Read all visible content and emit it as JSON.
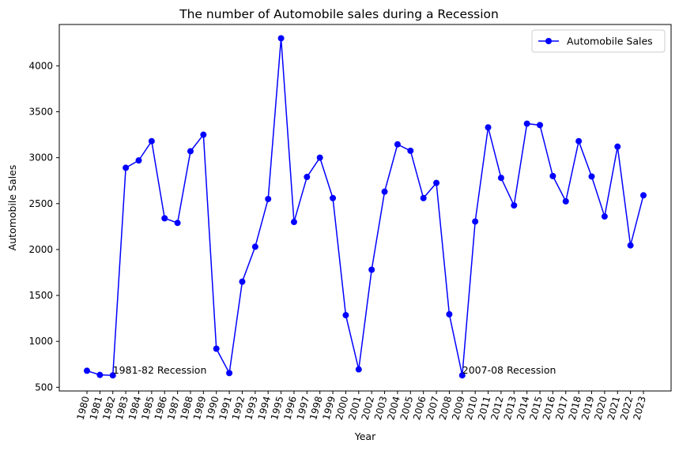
{
  "chart_data": {
    "type": "line",
    "title": "The number of Automobile sales during a Recession",
    "xlabel": "Year",
    "ylabel": "Automobile Sales",
    "x": [
      "1980",
      "1981",
      "1982",
      "1983",
      "1984",
      "1985",
      "1986",
      "1987",
      "1988",
      "1989",
      "1990",
      "1991",
      "1992",
      "1993",
      "1994",
      "1995",
      "1996",
      "1997",
      "1998",
      "1999",
      "2000",
      "2001",
      "2002",
      "2003",
      "2004",
      "2005",
      "2006",
      "2007",
      "2008",
      "2009",
      "2010",
      "2011",
      "2012",
      "2013",
      "2014",
      "2015",
      "2016",
      "2017",
      "2018",
      "2019",
      "2020",
      "2021",
      "2022",
      "2023"
    ],
    "ylim": [
      460,
      4450
    ],
    "yticks": [
      500,
      1000,
      1500,
      2000,
      2500,
      3000,
      3500,
      4000
    ],
    "series": [
      {
        "name": "Automobile Sales",
        "color": "#0000ff",
        "values": [
          680,
          635,
          630,
          2890,
          2970,
          3180,
          2340,
          2290,
          3070,
          3250,
          920,
          655,
          1650,
          2030,
          2550,
          4300,
          2300,
          2790,
          3000,
          2560,
          1285,
          695,
          1780,
          2630,
          3145,
          3075,
          2560,
          2725,
          1295,
          630,
          2305,
          3330,
          2780,
          2480,
          3370,
          3355,
          2800,
          2525,
          3180,
          2795,
          2360,
          3120,
          2045,
          2590
        ]
      }
    ],
    "legend": {
      "position": "top-right",
      "label": "Automobile Sales"
    },
    "annotations": [
      {
        "text": "1981-82 Recession",
        "x": "1982",
        "y": 630
      },
      {
        "text": "2007-08 Recession",
        "x": "2009",
        "y": 630
      }
    ],
    "grid": false
  }
}
